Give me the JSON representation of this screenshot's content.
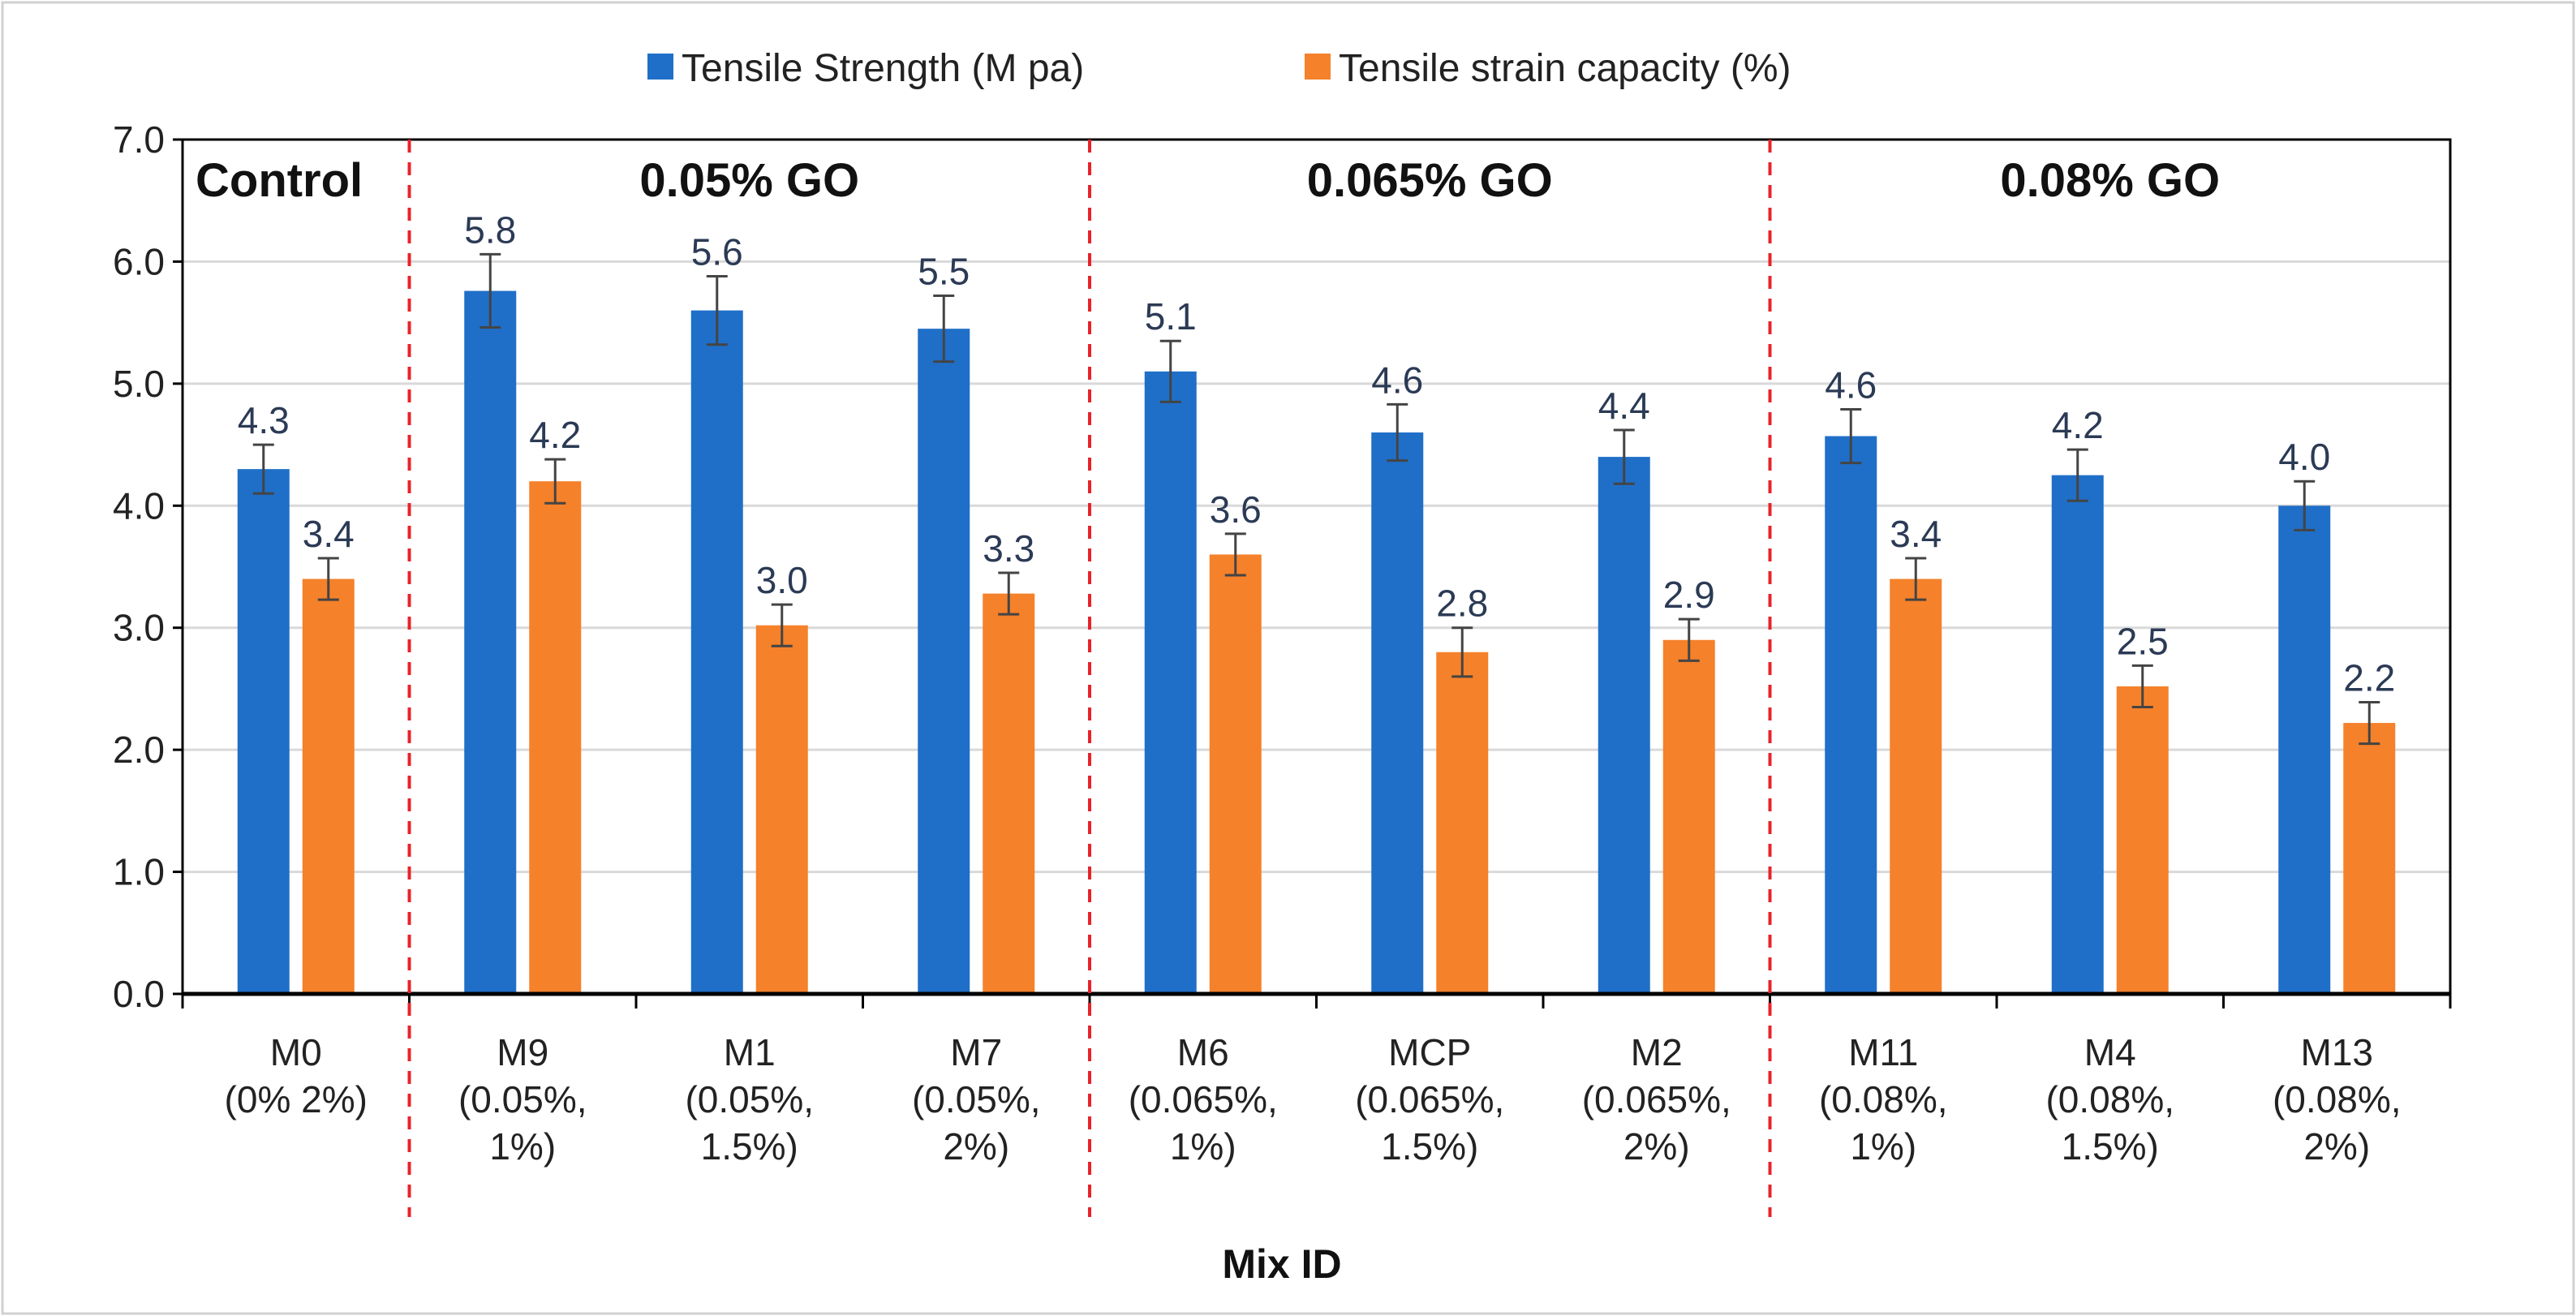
{
  "chart_data": {
    "type": "bar",
    "title": "",
    "xlabel": "Mix ID",
    "ylabel": "",
    "ylim": [
      0,
      7
    ],
    "yticks": [
      "0.0",
      "1.0",
      "2.0",
      "3.0",
      "4.0",
      "5.0",
      "6.0",
      "7.0"
    ],
    "grid": true,
    "legend_position": "top-center",
    "categories": [
      [
        "M0",
        "(0% 2%)"
      ],
      [
        "M9",
        "(0.05%,",
        "1%)"
      ],
      [
        "M1",
        "(0.05%,",
        "1.5%)"
      ],
      [
        "M7",
        "(0.05%,",
        "2%)"
      ],
      [
        "M6",
        "(0.065%,",
        "1%)"
      ],
      [
        "MCP",
        "(0.065%,",
        "1.5%)"
      ],
      [
        "M2",
        "(0.065%,",
        "2%)"
      ],
      [
        "M11",
        "(0.08%,",
        "1%)"
      ],
      [
        "M4",
        "(0.08%,",
        "1.5%)"
      ],
      [
        "M13",
        "(0.08%,",
        "2%)"
      ]
    ],
    "series": [
      {
        "name": "Tensile Strength (M pa)",
        "color": "#1f6fc8",
        "values": [
          4.3,
          5.76,
          5.6,
          5.45,
          5.1,
          4.6,
          4.4,
          4.57,
          4.25,
          4.0
        ],
        "labels": [
          "4.3",
          "5.8",
          "5.6",
          "5.5",
          "5.1",
          "4.6",
          "4.4",
          "4.6",
          "4.2",
          "4.0"
        ],
        "errors": [
          0.2,
          0.3,
          0.28,
          0.27,
          0.25,
          0.23,
          0.22,
          0.22,
          0.21,
          0.2
        ]
      },
      {
        "name": "Tensile strain capacity (%)",
        "color": "#f5812a",
        "values": [
          3.4,
          4.2,
          3.02,
          3.28,
          3.6,
          2.8,
          2.9,
          3.4,
          2.52,
          2.22
        ],
        "labels": [
          "3.4",
          "4.2",
          "3.0",
          "3.3",
          "3.6",
          "2.8",
          "2.9",
          "3.4",
          "2.5",
          "2.2"
        ],
        "errors": [
          0.17,
          0.18,
          0.17,
          0.17,
          0.17,
          0.2,
          0.17,
          0.17,
          0.17,
          0.17
        ]
      }
    ],
    "groups": [
      {
        "label": "Control",
        "start": 0,
        "end": 0
      },
      {
        "label": "0.05% GO",
        "start": 1,
        "end": 3
      },
      {
        "label": "0.065% GO",
        "start": 4,
        "end": 6
      },
      {
        "label": "0.08% GO",
        "start": 7,
        "end": 9
      }
    ],
    "separators_after": [
      0,
      3,
      6
    ],
    "separator_color": "#e8232a"
  }
}
